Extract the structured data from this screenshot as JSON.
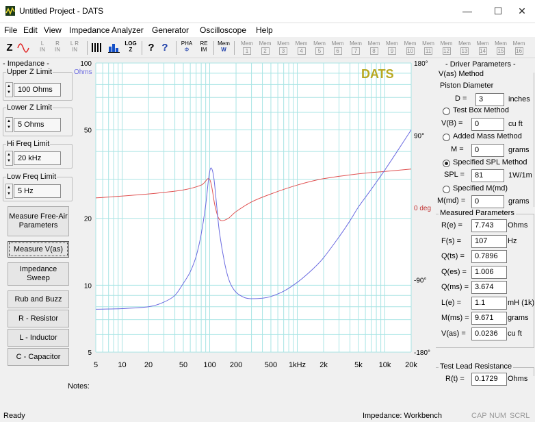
{
  "window": {
    "title": "Untitled Project - DATS",
    "minimize": "—",
    "maximize": "☐",
    "close": "✕"
  },
  "menu": [
    "File",
    "Edit",
    "View",
    "Impedance Analyzer",
    "Generator",
    "Oscilloscope",
    "Help"
  ],
  "toolbar": {
    "z": "Z",
    "l_top": "L",
    "l_bot": "IN",
    "r_top": "R",
    "r_bot": "IN",
    "lr_top": "L R",
    "lr_bot": "IN",
    "log_top": "LOG",
    "log_bot": "Z",
    "help1": "?",
    "help2": "?",
    "pha_top": "PHA",
    "pha_bot": "Φ",
    "re_top": "RE",
    "re_bot": "IM",
    "mem_top": "Mem",
    "mem_bot": "W",
    "mems": [
      "1",
      "2",
      "3",
      "4",
      "5",
      "6",
      "7",
      "8",
      "9",
      "10",
      "11",
      "12",
      "13",
      "14",
      "15",
      "16"
    ]
  },
  "left_panel": {
    "impedance_title": "- Impedance -",
    "upper_label": "Upper Z Limit",
    "upper_value": "100 Ohms",
    "lower_label": "Lower Z Limit",
    "lower_value": "5 Ohms",
    "hi_label": "Hi Freq Limit",
    "hi_value": "20 kHz",
    "low_label": "Low Freq Limit",
    "low_value": "5 Hz",
    "btn_freeair": "Measure Free-Air Parameters",
    "btn_vas": "Measure V(as)",
    "btn_sweep": "Impedance Sweep",
    "btn_rub": "Rub and Buzz",
    "btn_r": "R - Resistor",
    "btn_l": "L - Inductor",
    "btn_c": "C - Capacitor"
  },
  "notes_label": "Notes:",
  "chart_data": {
    "type": "line",
    "brand": "DATS",
    "ylabel": "Ohms",
    "y_ticks": [
      "100",
      "50",
      "20",
      "10",
      "5"
    ],
    "y_tick_values": [
      100,
      50,
      20,
      10,
      5
    ],
    "phase_ticks": [
      "180°",
      "90°",
      "0 deg",
      "-90°",
      "-180°"
    ],
    "phase_tick_values": [
      180,
      90,
      0,
      -90,
      -180
    ],
    "x_ticks": [
      "5",
      "10",
      "20",
      "50",
      "100",
      "200",
      "500",
      "1kHz",
      "2k",
      "5k",
      "10k",
      "20k"
    ],
    "x_tick_values": [
      5,
      10,
      20,
      50,
      100,
      200,
      500,
      1000,
      2000,
      5000,
      10000,
      20000
    ],
    "xlim": [
      5,
      20000
    ],
    "ylim": [
      5,
      100
    ],
    "phase_lim": [
      -180,
      180
    ],
    "x_scale": "log",
    "y_scale": "log",
    "grid": true,
    "colors": {
      "impedance": "#6a6ae0",
      "phase": "#e05050",
      "grid": "#a8e4e4",
      "brand": "#b8a820",
      "ohms": "#6a6ae0",
      "phase_label": "#c03030"
    },
    "series": [
      {
        "points": [
          [
            5,
            7.8
          ],
          [
            10,
            7.85
          ],
          [
            20,
            8.0
          ],
          [
            30,
            8.4
          ],
          [
            40,
            9.0
          ],
          [
            50,
            10.2
          ],
          [
            60,
            11.5
          ],
          [
            70,
            13.5
          ],
          [
            80,
            17
          ],
          [
            90,
            23
          ],
          [
            97,
            30
          ],
          [
            102,
            33.5
          ],
          [
            107,
            33.0
          ],
          [
            112,
            30
          ],
          [
            120,
            23
          ],
          [
            130,
            17
          ],
          [
            150,
            12.3
          ],
          [
            170,
            10.3
          ],
          [
            200,
            9.3
          ],
          [
            250,
            8.8
          ],
          [
            300,
            8.7
          ],
          [
            400,
            8.75
          ],
          [
            500,
            8.9
          ],
          [
            700,
            9.4
          ],
          [
            1000,
            10.3
          ],
          [
            1500,
            11.8
          ],
          [
            2000,
            13.3
          ],
          [
            3000,
            16.5
          ],
          [
            4000,
            19.5
          ],
          [
            5000,
            22.5
          ],
          [
            7000,
            27
          ],
          [
            10000,
            33
          ],
          [
            15000,
            42
          ],
          [
            20000,
            50
          ]
        ]
      },
      {
        "points": [
          [
            5,
            12
          ],
          [
            20,
            17
          ],
          [
            50,
            22
          ],
          [
            80,
            28
          ],
          [
            100,
            35
          ],
          [
            115,
            2
          ],
          [
            130,
            -15
          ],
          [
            160,
            -14
          ],
          [
            200,
            -5
          ],
          [
            300,
            7
          ],
          [
            500,
            17
          ],
          [
            1000,
            28
          ],
          [
            2000,
            36
          ],
          [
            5000,
            42
          ],
          [
            10000,
            45
          ],
          [
            20000,
            48
          ]
        ]
      }
    ]
  },
  "right_panel": {
    "title": "- Driver Parameters -",
    "vas_method": "V(as) Method",
    "piston_label": "Piston Diameter",
    "d_label": "D =",
    "d_value": "3",
    "d_unit": "inches",
    "test_box": "Test Box Method",
    "vb_label": "V(B) =",
    "vb_value": "0",
    "vb_unit": "cu ft",
    "added_mass": "Added Mass Method",
    "m_label": "M =",
    "m_value": "0",
    "m_unit": "grams",
    "spl_method": "Specified SPL Method",
    "spl_label": "SPL =",
    "spl_value": "81",
    "spl_unit": "1W/1m",
    "mmd_method": "Specified M(md)",
    "mmd_label": "M(md) =",
    "mmd_value": "0",
    "mmd_unit": "grams",
    "measured_title": "Measured Parameters",
    "measured": [
      {
        "label": "R(e) =",
        "value": "7.743",
        "unit": "Ohms"
      },
      {
        "label": "F(s) =",
        "value": "107",
        "unit": "Hz"
      },
      {
        "label": "Q(ts) =",
        "value": "0.7896",
        "unit": ""
      },
      {
        "label": "Q(es) =",
        "value": "1.006",
        "unit": ""
      },
      {
        "label": "Q(ms) =",
        "value": "3.674",
        "unit": ""
      },
      {
        "label": "L(e) =",
        "value": "1.1",
        "unit": "mH (1k)"
      },
      {
        "label": "M(ms) =",
        "value": "9.671",
        "unit": "grams"
      },
      {
        "label": "V(as) =",
        "value": "0.0236",
        "unit": "cu ft"
      }
    ],
    "lead_title": "Test Lead Resistance",
    "rt_label": "R(t) =",
    "rt_value": "0.1729",
    "rt_unit": "Ohms"
  },
  "status": {
    "ready": "Ready",
    "mode": "Impedance: Workbench",
    "cap": "CAP",
    "num": "NUM",
    "scrl": "SCRL"
  }
}
